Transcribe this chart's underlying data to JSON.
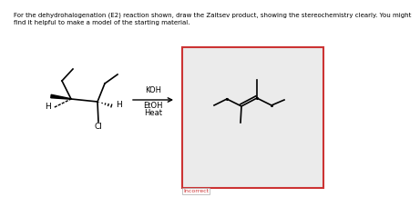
{
  "title_text": "For the dehydrohalogenation (E2) reaction shown, draw the Zaitsev product, showing the stereochemistry clearly. You might\nfind it helpful to make a model of the starting material.",
  "title_fontsize": 5.0,
  "background_color": "#f0f0f0",
  "box_color": "#ebebeb",
  "border_color": "#cc3333",
  "incorrect_label": "Incorrect",
  "fig_bg": "#ffffff",
  "lw": 1.2
}
